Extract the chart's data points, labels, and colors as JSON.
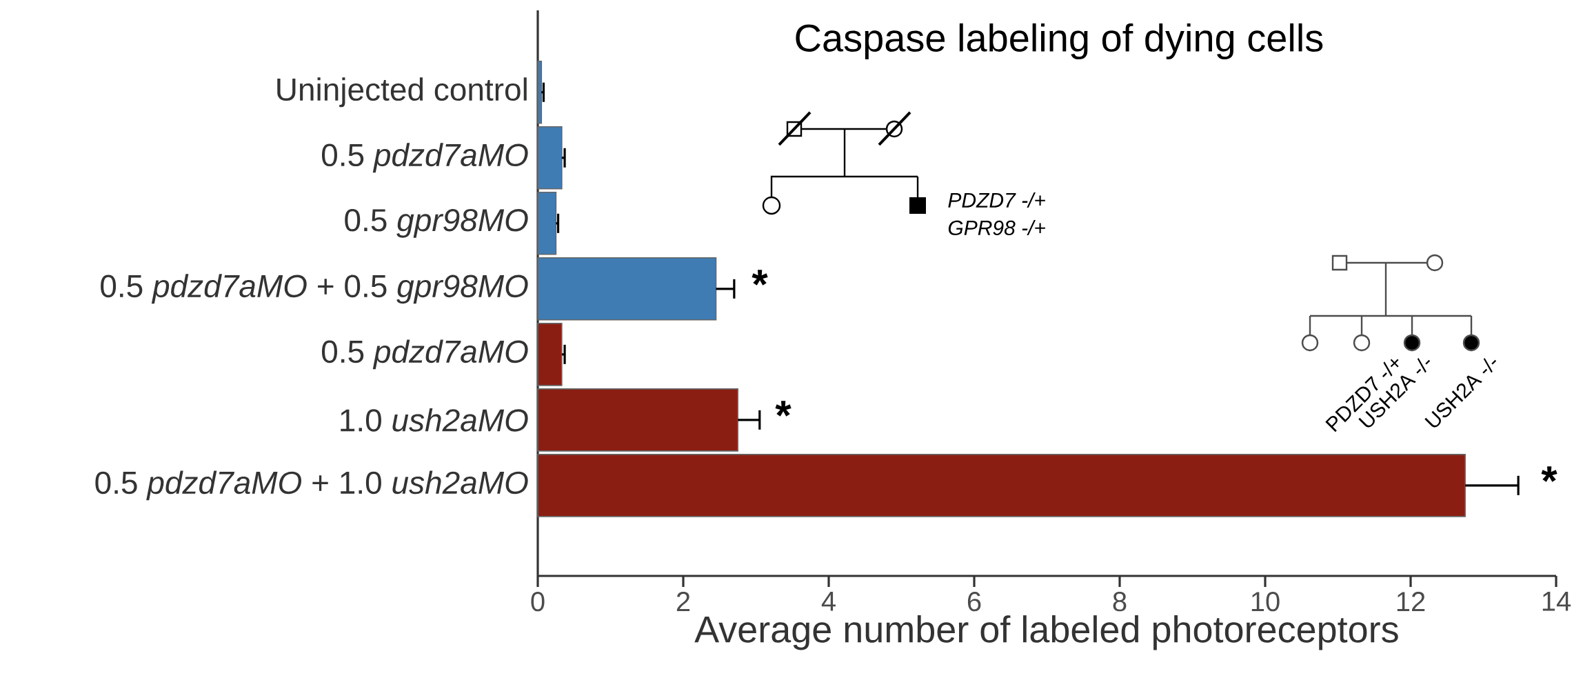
{
  "chart_data": {
    "type": "bar",
    "orientation": "horizontal",
    "title": "Caspase labeling of dying cells",
    "xlabel": "Average number of labeled photoreceptors",
    "categories": [
      "Uninjected control",
      "0.5 *pdzd7aMO*",
      "0.5 *gpr98MO*",
      "0.5 *pdzd7aMO* + 0.5 *gpr98MO*",
      "0.5 *pdzd7aMO*",
      "1.0 *ush2aMO*",
      "0.5 *pdzd7aMO* + 1.0 *ush2aMO*"
    ],
    "values": [
      0.05,
      0.33,
      0.25,
      2.45,
      0.33,
      2.75,
      12.75
    ],
    "errors": [
      0.03,
      0.04,
      0.03,
      0.25,
      0.04,
      0.3,
      0.73
    ],
    "colors": [
      "#3f7cb4",
      "#3f7cb4",
      "#3f7cb4",
      "#3f7cb4",
      "#8b1e12",
      "#8b1e12",
      "#8b1e12"
    ],
    "xlim": [
      0,
      14
    ],
    "xticks": [
      0,
      2,
      4,
      6,
      8,
      10,
      12,
      14
    ],
    "annotations": [
      "*",
      "*",
      "*",
      "PDZD7 -/+",
      "GPR98 -/+",
      "PDZD7 -/+",
      "USH2A -/-",
      "USH2A -/-"
    ]
  }
}
